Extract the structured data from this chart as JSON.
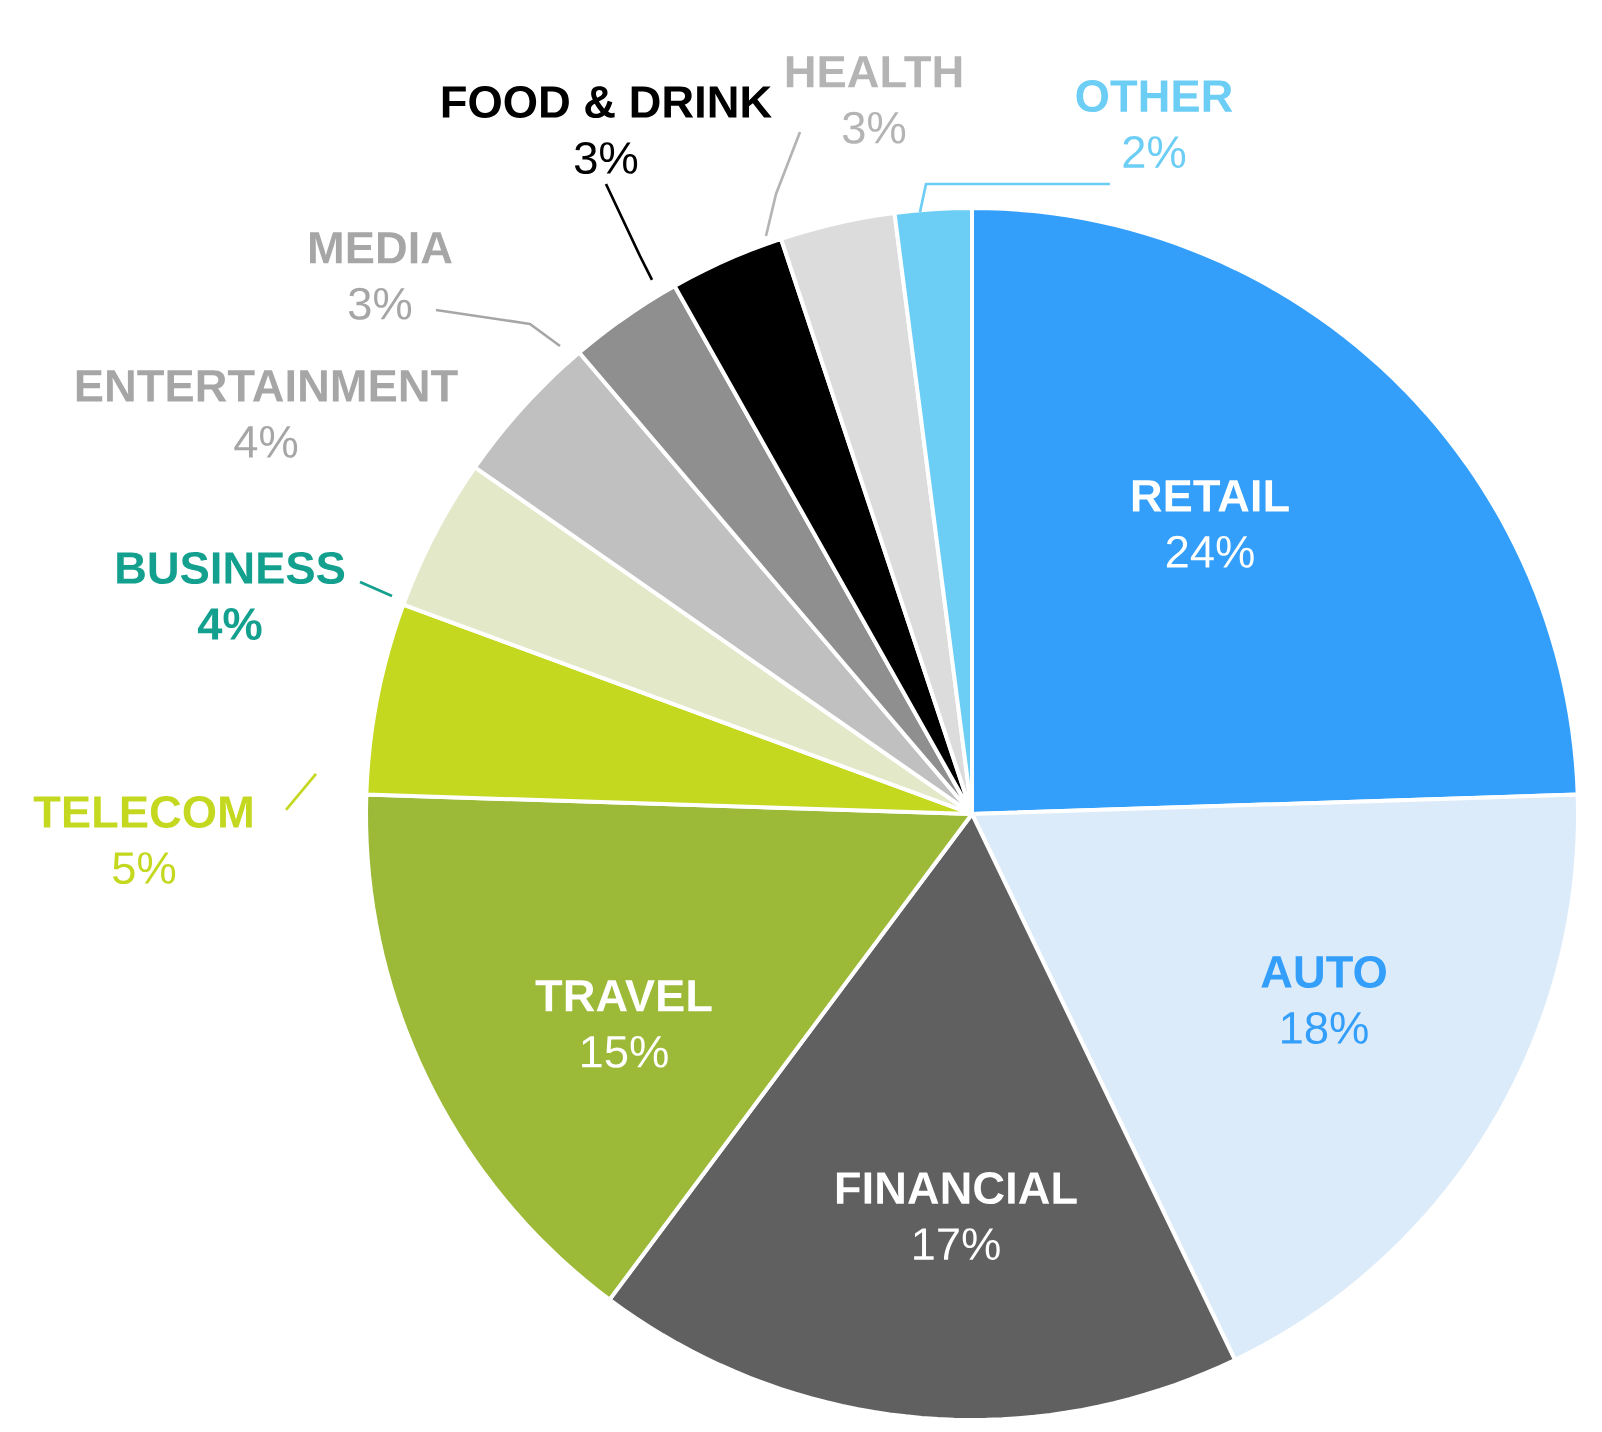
{
  "chart_data": {
    "type": "pie",
    "categories": [
      "RETAIL",
      "AUTO",
      "FINANCIAL",
      "TRAVEL",
      "TELECOM",
      "BUSINESS",
      "ENTERTAINMENT",
      "MEDIA",
      "FOOD & DRINK",
      "HEALTH",
      "OTHER"
    ],
    "values": [
      24,
      18,
      17,
      15,
      5,
      4,
      4,
      3,
      3,
      3,
      2
    ],
    "value_labels": [
      "24%",
      "18%",
      "17%",
      "15%",
      "5%",
      "4%",
      "4%",
      "3%",
      "3%",
      "3%",
      "2%"
    ],
    "colors": [
      "#339ffa",
      "#dcebf9",
      "#606060",
      "#9cba37",
      "#c4d820",
      "#e3e8c8",
      "#c0c0c0",
      "#8f8f8f",
      "#000000",
      "#dcdcdc",
      "#6ccdf5"
    ],
    "legend": false
  }
}
